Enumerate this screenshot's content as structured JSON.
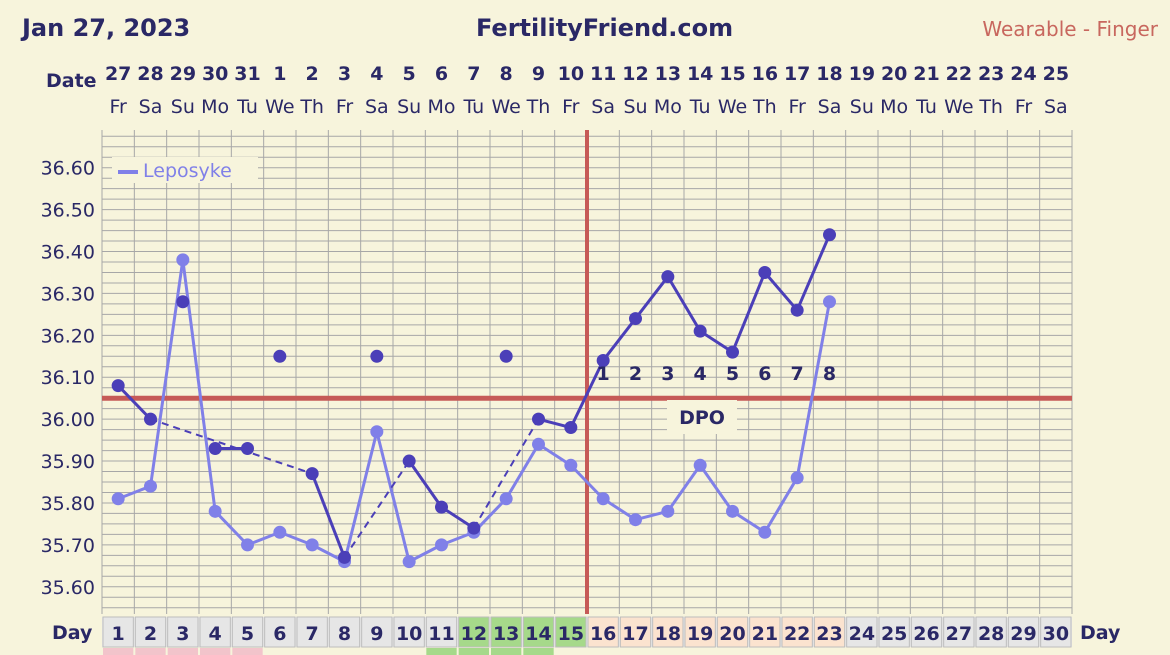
{
  "header": {
    "date": "Jan 27, 2023",
    "site": "FertilityFriend.com",
    "wearable": "Wearable - Finger"
  },
  "labels": {
    "date_row": "Date",
    "day_row": "Day",
    "dpo": "DPO"
  },
  "colors": {
    "background": "#f7f4dc",
    "grid": "#a7a7a7",
    "main_series": "#4b3fb8",
    "secondary_series": "#8080e8",
    "coverline": "#c65a57",
    "ovulation_line": "#c65a57",
    "text": "#2a2866"
  },
  "chart_data": {
    "type": "line",
    "dates": [
      "27",
      "28",
      "29",
      "30",
      "31",
      "1",
      "2",
      "3",
      "4",
      "5",
      "6",
      "7",
      "8",
      "9",
      "10",
      "11",
      "12",
      "13",
      "14",
      "15",
      "16",
      "17",
      "18",
      "19",
      "20",
      "21",
      "22",
      "23",
      "24",
      "25"
    ],
    "weekdays": [
      "Fr",
      "Sa",
      "Su",
      "Mo",
      "Tu",
      "We",
      "Th",
      "Fr",
      "Sa",
      "Su",
      "Mo",
      "Tu",
      "We",
      "Th",
      "Fr",
      "Sa",
      "Su",
      "Mo",
      "Tu",
      "We",
      "Th",
      "Fr",
      "Sa",
      "Su",
      "Mo",
      "Tu",
      "We",
      "Th",
      "Fr",
      "Sa"
    ],
    "days": [
      1,
      2,
      3,
      4,
      5,
      6,
      7,
      8,
      9,
      10,
      11,
      12,
      13,
      14,
      15,
      16,
      17,
      18,
      19,
      20,
      21,
      22,
      23,
      24,
      25,
      26,
      27,
      28,
      29,
      30
    ],
    "y_ticks": [
      "36.60",
      "36.50",
      "36.40",
      "36.30",
      "36.20",
      "36.10",
      "36.00",
      "35.90",
      "35.80",
      "35.70",
      "35.60"
    ],
    "ylim": [
      35.535,
      36.69
    ],
    "series": [
      {
        "name": "",
        "values": [
          36.08,
          36.0,
          36.28,
          35.93,
          35.93,
          36.15,
          35.87,
          35.67,
          36.15,
          35.9,
          35.79,
          35.74,
          36.15,
          36.0,
          35.98,
          36.14,
          36.24,
          36.34,
          36.21,
          36.16,
          36.35,
          36.26,
          36.44,
          null,
          null,
          null,
          null,
          null,
          null,
          null
        ]
      },
      {
        "name": "Leposyke",
        "values": [
          35.81,
          35.84,
          36.38,
          35.78,
          35.7,
          35.73,
          35.7,
          35.66,
          35.97,
          35.66,
          35.7,
          35.73,
          35.81,
          35.94,
          35.89,
          35.81,
          35.76,
          35.78,
          35.89,
          35.78,
          35.73,
          35.86,
          36.28,
          null,
          null,
          null,
          null,
          null,
          null,
          null
        ]
      }
    ],
    "coverline": 36.05,
    "ovulation_day": 15,
    "dpo_labels": [
      "1",
      "2",
      "3",
      "4",
      "5",
      "6",
      "7",
      "8"
    ],
    "day_highlights": {
      "green": [
        12,
        13,
        14,
        15
      ],
      "orange": [
        16,
        17,
        18,
        19,
        20,
        21,
        22,
        23
      ]
    },
    "legend": {
      "label": "Leposyke",
      "placement": "top-left"
    },
    "grid": true
  }
}
